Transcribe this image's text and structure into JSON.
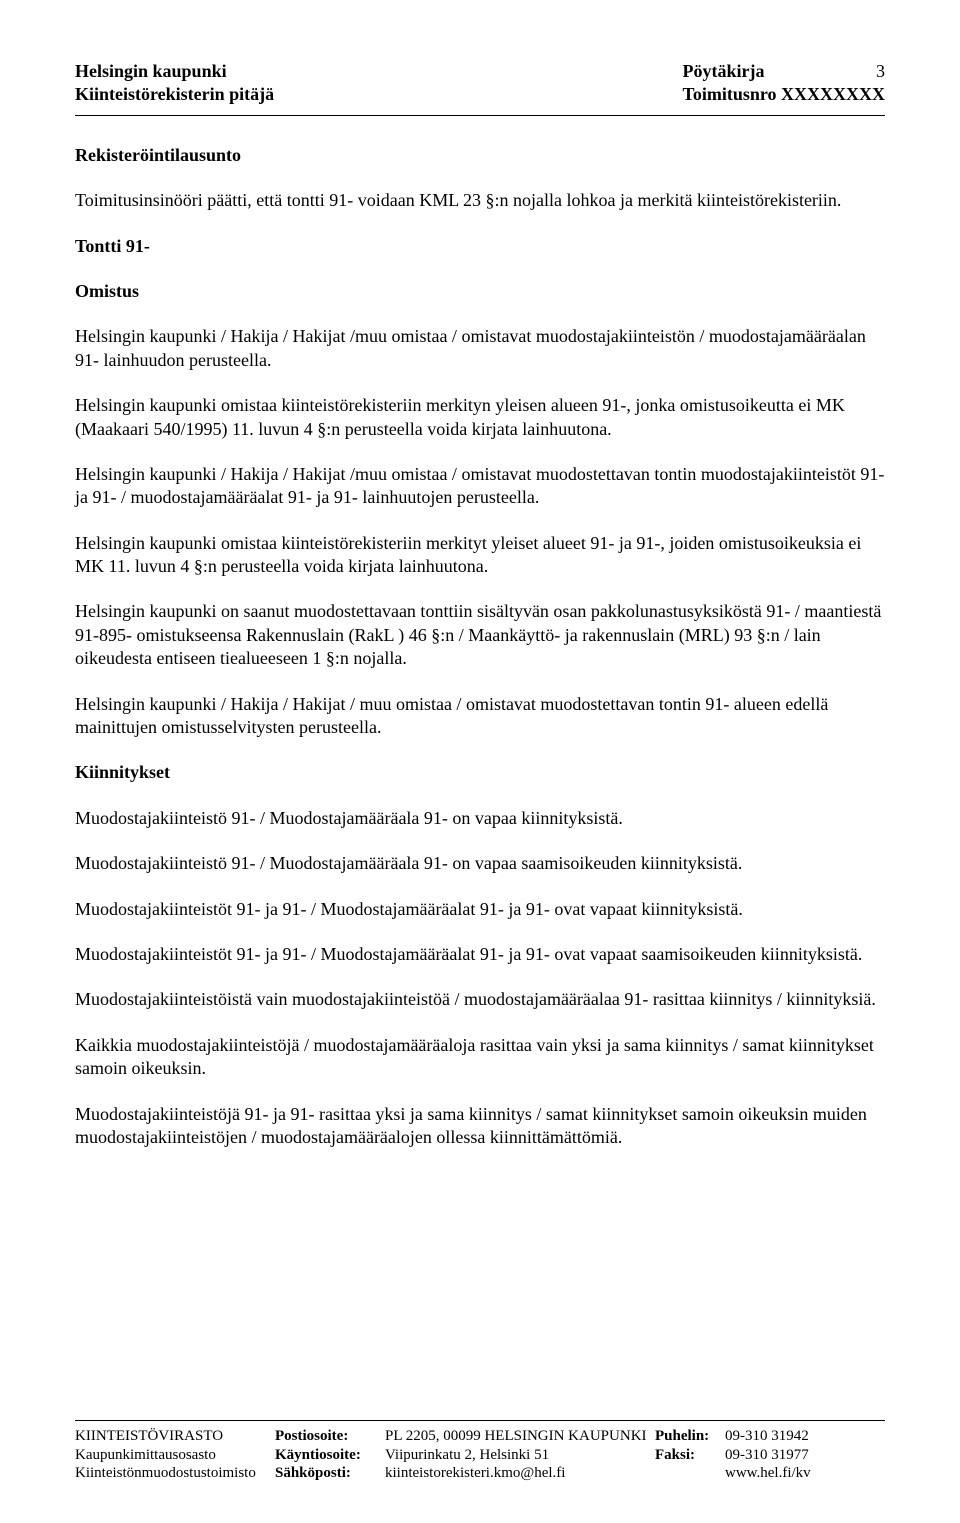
{
  "header": {
    "left1": "Helsingin kaupunki",
    "left2": "Kiinteistörekisterin pitäjä",
    "right1": "Pöytäkirja",
    "right2": "Toimitusnro XXXXXXXX",
    "page": "3"
  },
  "sections": {
    "s1_title": "Rekisteröintilausunto",
    "p1": "Toimitusinsinööri päätti, että tontti 91- voidaan KML 23 §:n nojalla lohkoa ja merkitä kiinteistörekisteriin.",
    "s2_title": "Tontti 91-",
    "s3_title": "Omistus",
    "p2": "Helsingin kaupunki / Hakija / Hakijat /muu omistaa / omistavat muodostajakiinteistön / muodostajamääräalan 91- lainhuudon perusteella.",
    "p3": "Helsingin kaupunki omistaa kiinteistörekisteriin merkityn yleisen alueen 91-, jonka omistusoikeutta ei MK (Maakaari 540/1995) 11. luvun 4 §:n perusteella voida kirjata lainhuutona.",
    "p4": "Helsingin kaupunki / Hakija / Hakijat /muu omistaa / omistavat muodostettavan tontin muodostajakiinteistöt 91- ja 91- / muodostajamääräalat 91- ja 91- lainhuutojen perusteella.",
    "p5": "Helsingin kaupunki omistaa kiinteistörekisteriin merkityt yleiset alueet 91- ja 91-, joiden omistusoikeuksia ei MK 11. luvun 4 §:n perusteella voida kirjata lainhuutona.",
    "p6": "Helsingin kaupunki on saanut muodostettavaan tonttiin sisältyvän osan pakkolunastusyksiköstä 91- / maantiestä 91-895- omistukseensa Rakennuslain (RakL ) 46 §:n / Maankäyttö- ja rakennuslain (MRL) 93 §:n / lain oikeudesta entiseen tiealueeseen 1 §:n nojalla.",
    "p7": "Helsingin kaupunki / Hakija / Hakijat / muu omistaa / omistavat muodostettavan tontin 91- alueen edellä mainittujen omistusselvitysten perusteella.",
    "s4_title": "Kiinnitykset",
    "p8": "Muodostajakiinteistö 91- / Muodostajamääräala 91- on vapaa kiinnityksistä.",
    "p9": "Muodostajakiinteistö 91- / Muodostajamääräala 91- on vapaa saamisoikeuden kiinnityksistä.",
    "p10": "Muodostajakiinteistöt 91- ja 91- / Muodostajamääräalat 91- ja 91- ovat vapaat kiinnityksistä.",
    "p11": "Muodostajakiinteistöt 91- ja 91- / Muodostajamääräalat 91- ja 91- ovat vapaat saamisoikeuden kiinnityksistä.",
    "p12": "Muodostajakiinteistöistä vain muodostajakiinteistöä / muodostajamääräalaa 91- rasittaa kiinnitys / kiinnityksiä.",
    "p13": "Kaikkia muodostajakiinteistöjä / muodostajamääräaloja rasittaa vain yksi ja sama kiinnitys / samat kiinnitykset samoin oikeuksin.",
    "p14": "Muodostajakiinteistöjä 91- ja 91- rasittaa yksi ja sama kiinnitys / samat kiinnitykset samoin oikeuksin muiden muodostajakiinteistöjen / muodostajamääräalojen ollessa kiinnittämättömiä."
  },
  "footer": {
    "r1c1": "KIINTEISTÖVIRASTO",
    "r1c2": "Postiosoite:",
    "r1c3": "PL 2205, 00099 HELSINGIN KAUPUNKI",
    "r1c4": "Puhelin:",
    "r1c5": "09-310 31942",
    "r2c1": "Kaupunkimittausosasto",
    "r2c2": "Käyntiosoite:",
    "r2c3": "Viipurinkatu 2, Helsinki 51",
    "r2c4": "Faksi:",
    "r2c5": "09-310 31977",
    "r3c1": "Kiinteistönmuodostustoimisto",
    "r3c2": "Sähköposti:",
    "r3c3": "kiinteistorekisteri.kmo@hel.fi",
    "r3c4": "",
    "r3c5": "www.hel.fi/kv"
  }
}
